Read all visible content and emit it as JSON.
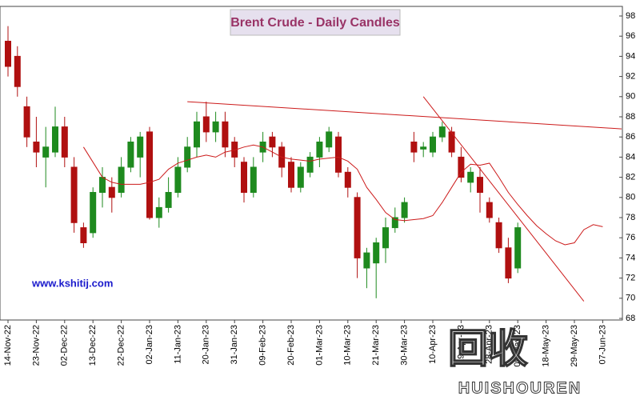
{
  "chart_data": {
    "type": "candlestick",
    "title": "Brent Crude - Daily Candles",
    "annotation": "www.kshitij.com",
    "watermark_logo": "回收",
    "watermark": "HUISHOUREN",
    "categories": [
      "14-Nov-22",
      null,
      null,
      "23-Nov-22",
      null,
      null,
      "02-Dec-22",
      null,
      null,
      "13-Dec-22",
      null,
      null,
      "22-Dec-22",
      null,
      null,
      "02-Jan-23",
      null,
      null,
      "11-Jan-23",
      null,
      null,
      "20-Jan-23",
      null,
      null,
      "31-Jan-23",
      null,
      null,
      "09-Feb-23",
      null,
      null,
      "20-Feb-23",
      null,
      null,
      "01-Mar-23",
      null,
      null,
      "10-Mar-23",
      null,
      null,
      "21-Mar-23",
      null,
      null,
      "30-Mar-23",
      null,
      null,
      "10-Apr-23",
      null,
      null,
      "19-Apr-23",
      null,
      null,
      "28-Apr-23",
      null,
      null,
      "09-May-23",
      null,
      null,
      "18-May-23",
      null,
      null,
      "29-May-23",
      null,
      null,
      "07-Jun-23",
      null,
      null
    ],
    "open": [
      95.5,
      94,
      89,
      85.5,
      84,
      84.5,
      87,
      83,
      77,
      76.5,
      80.5,
      81,
      80.5,
      83,
      84,
      86.5,
      78,
      79,
      80.5,
      83,
      85,
      88,
      86.5,
      87.5,
      85.5,
      83.5,
      80.5,
      84.5,
      86,
      85,
      83.5,
      81,
      82.5,
      84,
      85,
      86,
      82.5,
      80,
      73,
      73.5,
      75,
      77,
      78,
      85.5,
      84.8,
      84.5,
      86,
      86.5,
      84,
      81.5,
      82,
      79.5,
      77.5,
      75,
      73,
      null,
      null,
      null,
      null,
      null,
      null,
      null,
      null,
      null,
      null,
      null
    ],
    "high": [
      97,
      95,
      90,
      88,
      87,
      89,
      88,
      84,
      77.5,
      81,
      83,
      82,
      84,
      86,
      86.5,
      87,
      80,
      82,
      84,
      86,
      88.5,
      89.5,
      88.5,
      88.5,
      86,
      84,
      84,
      86.5,
      86.5,
      85.5,
      84,
      83.5,
      84.5,
      86,
      87,
      86.5,
      83,
      80.5,
      75,
      76,
      78,
      79,
      80,
      86.5,
      85.5,
      86.5,
      87.5,
      87,
      85,
      83,
      83,
      80,
      78,
      76,
      77.5,
      null,
      null,
      null,
      null,
      null,
      null,
      null,
      null,
      null,
      null,
      null
    ],
    "low": [
      92,
      90,
      85,
      83,
      81,
      84,
      83,
      76.5,
      75,
      76,
      79,
      78.5,
      80,
      82.5,
      82,
      77.8,
      77,
      78.5,
      80,
      82.5,
      84,
      85.5,
      85.5,
      84,
      83,
      79.5,
      80,
      83.5,
      84,
      82,
      80.5,
      80.5,
      82,
      83,
      84.5,
      82,
      80,
      72,
      71,
      70,
      73.5,
      76.5,
      77.5,
      83.5,
      84,
      84,
      85.5,
      84,
      81.5,
      80.5,
      78.5,
      77.5,
      74.5,
      71.5,
      72.5,
      null,
      null,
      null,
      null,
      null,
      null,
      null,
      null,
      null,
      null,
      null
    ],
    "close": [
      93,
      91,
      86,
      84.5,
      85,
      87,
      84,
      77.5,
      75.5,
      80.5,
      82,
      80,
      83,
      85.5,
      86,
      78,
      79,
      80.5,
      83,
      85,
      87.5,
      86.5,
      87.5,
      85,
      84,
      80.5,
      83,
      85.5,
      85,
      83,
      81,
      83,
      84,
      85.5,
      86.5,
      82.5,
      81,
      74,
      74.5,
      75.5,
      77,
      78,
      79.5,
      84.5,
      85,
      86,
      87,
      84.5,
      82,
      82.5,
      80.5,
      78,
      75,
      72,
      77,
      null,
      null,
      null,
      null,
      null,
      null,
      null,
      null,
      null,
      null,
      null
    ],
    "up_color": "#1e8a1e",
    "down_color": "#b01010",
    "moving_average": {
      "color": "#cc1a1a",
      "values": [
        null,
        null,
        null,
        null,
        null,
        null,
        null,
        null,
        85,
        83.5,
        82,
        81.5,
        81.3,
        81.3,
        81.3,
        81.5,
        81.8,
        82.8,
        83.4,
        83.7,
        84,
        84.2,
        84,
        84.5,
        84.7,
        85,
        85.2,
        85,
        84.5,
        84,
        83.8,
        83.7,
        83.6,
        83.8,
        83.9,
        84,
        83.6,
        82.8,
        81,
        79.8,
        78.5,
        77.8,
        77.7,
        77.8,
        77.9,
        78.2,
        79.5,
        81,
        82.5,
        83.3,
        83.2,
        83.4,
        82,
        80.5,
        79.3,
        78.2,
        77.2,
        76.4,
        75.7,
        75.3,
        75.5,
        76.8,
        77.3,
        77.1,
        null,
        null
      ]
    },
    "trendlines": [
      {
        "color": "#cc1a1a",
        "values": [
          null,
          null,
          null,
          null,
          null,
          null,
          null,
          null,
          null,
          null,
          null,
          null,
          null,
          null,
          null,
          null,
          null,
          null,
          null,
          89.5,
          null,
          null,
          null,
          null,
          null,
          null,
          null,
          null,
          null,
          null,
          null,
          null,
          null,
          null,
          null,
          null,
          null,
          null,
          null,
          null,
          null,
          null,
          null,
          null,
          null,
          null,
          null,
          null,
          null,
          null,
          null,
          null,
          null,
          null,
          null,
          null,
          null,
          null,
          null,
          null,
          null,
          null,
          null,
          null,
          null,
          86.8
        ]
      },
      {
        "color": "#cc1a1a",
        "values": [
          null,
          null,
          null,
          null,
          null,
          null,
          null,
          null,
          null,
          null,
          null,
          null,
          null,
          null,
          null,
          null,
          null,
          null,
          null,
          null,
          null,
          null,
          null,
          null,
          null,
          null,
          null,
          null,
          null,
          null,
          null,
          null,
          null,
          null,
          null,
          null,
          null,
          null,
          null,
          null,
          null,
          null,
          null,
          null,
          90,
          null,
          null,
          null,
          null,
          null,
          null,
          null,
          null,
          null,
          null,
          null,
          null,
          null,
          null,
          null,
          null,
          69.7,
          null,
          null,
          null,
          null
        ]
      }
    ],
    "ylim": [
      68,
      98
    ],
    "yticks": [
      68,
      70,
      72,
      74,
      76,
      78,
      80,
      82,
      84,
      86,
      88,
      90,
      92,
      94,
      96,
      98
    ]
  }
}
